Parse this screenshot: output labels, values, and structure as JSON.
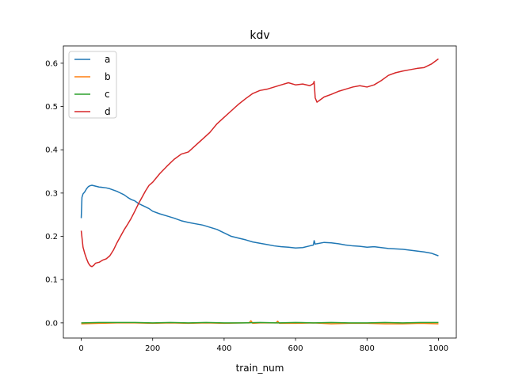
{
  "chart_data": {
    "type": "line",
    "title": "kdv",
    "xlabel": "train_num",
    "ylabel": "",
    "xlim": [
      -50,
      1050
    ],
    "ylim": [
      -0.035,
      0.64
    ],
    "xticks": [
      0,
      200,
      400,
      600,
      800,
      1000
    ],
    "yticks": [
      0.0,
      0.1,
      0.2,
      0.3,
      0.4,
      0.5,
      0.6
    ],
    "grid": false,
    "legend_position": "top-left",
    "series": [
      {
        "name": "a",
        "color": "#1f77b4",
        "x": [
          0,
          2,
          5,
          10,
          15,
          20,
          25,
          30,
          40,
          50,
          60,
          70,
          80,
          90,
          100,
          110,
          120,
          130,
          140,
          150,
          160,
          170,
          180,
          190,
          200,
          220,
          240,
          260,
          280,
          300,
          320,
          340,
          360,
          380,
          400,
          420,
          440,
          460,
          480,
          500,
          520,
          540,
          560,
          580,
          600,
          620,
          640,
          650,
          652,
          655,
          660,
          680,
          700,
          720,
          740,
          760,
          780,
          800,
          820,
          840,
          860,
          880,
          900,
          920,
          940,
          960,
          980,
          1000
        ],
        "y": [
          0.242,
          0.29,
          0.298,
          0.303,
          0.31,
          0.315,
          0.317,
          0.318,
          0.316,
          0.314,
          0.313,
          0.312,
          0.31,
          0.307,
          0.304,
          0.3,
          0.296,
          0.29,
          0.285,
          0.282,
          0.276,
          0.272,
          0.268,
          0.264,
          0.258,
          0.252,
          0.247,
          0.242,
          0.236,
          0.232,
          0.229,
          0.226,
          0.221,
          0.216,
          0.208,
          0.2,
          0.196,
          0.192,
          0.187,
          0.184,
          0.181,
          0.178,
          0.176,
          0.175,
          0.173,
          0.174,
          0.178,
          0.18,
          0.19,
          0.182,
          0.183,
          0.186,
          0.185,
          0.183,
          0.18,
          0.178,
          0.177,
          0.175,
          0.176,
          0.174,
          0.172,
          0.171,
          0.17,
          0.168,
          0.166,
          0.164,
          0.161,
          0.155
        ]
      },
      {
        "name": "b",
        "color": "#ff7f0e",
        "x": [
          0,
          50,
          100,
          150,
          200,
          250,
          300,
          350,
          400,
          450,
          470,
          475,
          480,
          500,
          545,
          550,
          555,
          600,
          650,
          700,
          750,
          800,
          850,
          900,
          950,
          1000
        ],
        "y": [
          -0.002,
          -0.001,
          0.0,
          0.0,
          -0.001,
          0.0,
          -0.001,
          0.0,
          -0.001,
          0.0,
          0.0,
          0.005,
          -0.001,
          0.0,
          0.0,
          0.004,
          -0.001,
          -0.001,
          0.0,
          -0.002,
          -0.001,
          -0.001,
          -0.002,
          -0.002,
          -0.001,
          -0.002
        ]
      },
      {
        "name": "c",
        "color": "#2ca02c",
        "x": [
          0,
          50,
          100,
          150,
          200,
          250,
          300,
          350,
          400,
          450,
          500,
          550,
          600,
          650,
          700,
          750,
          800,
          850,
          900,
          950,
          1000
        ],
        "y": [
          0.0,
          0.001,
          0.001,
          0.001,
          0.0,
          0.001,
          0.0,
          0.001,
          0.0,
          0.0,
          0.001,
          0.0,
          0.001,
          0.0,
          0.001,
          0.0,
          0.0,
          0.001,
          0.0,
          0.001,
          0.001
        ]
      },
      {
        "name": "d",
        "color": "#d62728",
        "x": [
          0,
          5,
          10,
          15,
          20,
          25,
          30,
          35,
          40,
          50,
          60,
          70,
          80,
          90,
          100,
          110,
          120,
          130,
          140,
          150,
          160,
          170,
          180,
          190,
          200,
          220,
          240,
          260,
          280,
          300,
          320,
          340,
          360,
          380,
          400,
          420,
          440,
          460,
          480,
          500,
          520,
          540,
          560,
          580,
          600,
          620,
          640,
          650,
          652,
          655,
          660,
          680,
          700,
          720,
          740,
          760,
          780,
          800,
          820,
          840,
          860,
          880,
          900,
          920,
          940,
          960,
          980,
          1000
        ],
        "y": [
          0.213,
          0.175,
          0.16,
          0.148,
          0.138,
          0.132,
          0.13,
          0.133,
          0.138,
          0.14,
          0.145,
          0.148,
          0.155,
          0.168,
          0.185,
          0.2,
          0.215,
          0.228,
          0.242,
          0.258,
          0.275,
          0.29,
          0.305,
          0.318,
          0.325,
          0.345,
          0.362,
          0.378,
          0.39,
          0.395,
          0.41,
          0.425,
          0.44,
          0.46,
          0.475,
          0.49,
          0.505,
          0.518,
          0.53,
          0.537,
          0.54,
          0.545,
          0.55,
          0.555,
          0.55,
          0.552,
          0.548,
          0.553,
          0.558,
          0.52,
          0.51,
          0.522,
          0.528,
          0.535,
          0.54,
          0.545,
          0.548,
          0.545,
          0.55,
          0.56,
          0.572,
          0.578,
          0.582,
          0.585,
          0.588,
          0.59,
          0.598,
          0.61
        ]
      }
    ]
  }
}
